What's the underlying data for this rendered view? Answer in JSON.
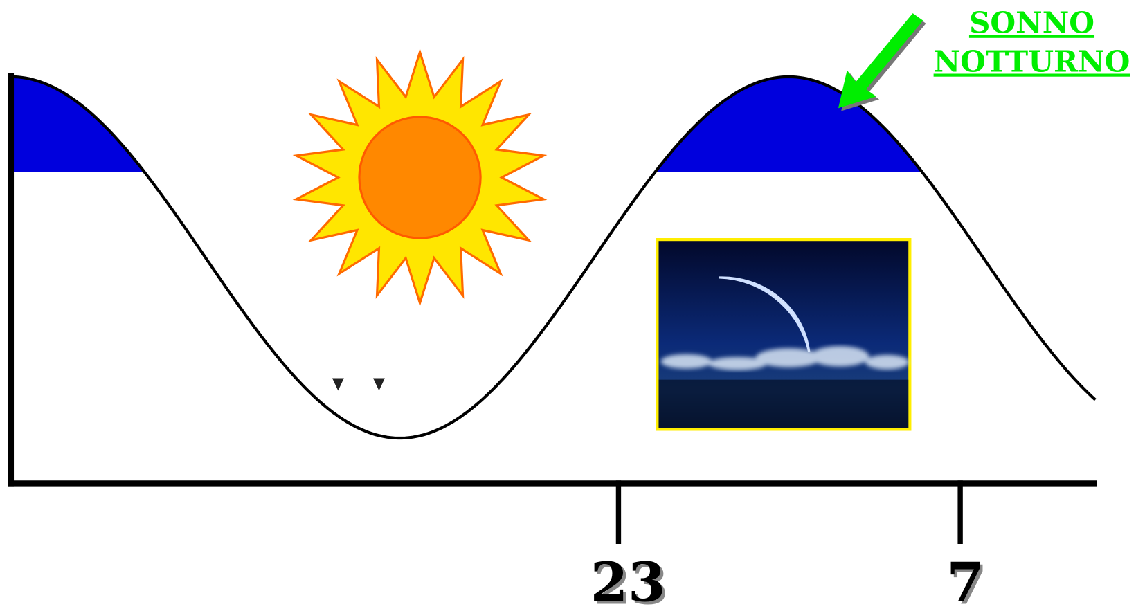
{
  "label": {
    "line1": "SONNO",
    "line2": "NOTTURNO"
  },
  "axis": {
    "ticks": [
      "23",
      "7"
    ]
  }
}
